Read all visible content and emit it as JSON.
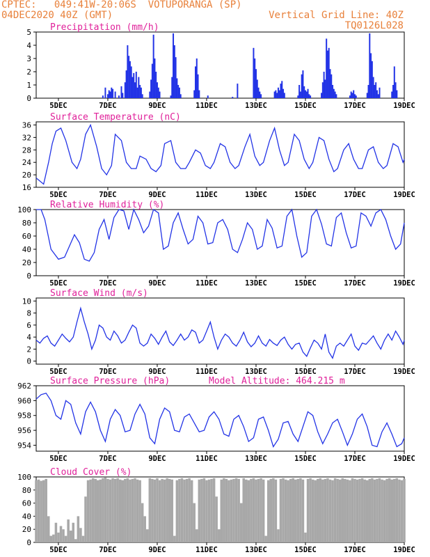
{
  "header": {
    "line1_left": "CPTEC:   049:41W-20:06S  VOTUPORANGA (SP)",
    "line2_left": "04DEC2020 40Z (GMT)",
    "line1_right": "Vertical Grid Line: 40Z",
    "line2_right": "TQ0126L028"
  },
  "colors": {
    "header": "#e8803a",
    "title": "#e0209a",
    "series": "#2233e6",
    "cloud": "#a8a8a8",
    "axis": "#000000"
  },
  "x_axis": {
    "ticks": [
      "5DEC",
      "7DEC",
      "9DEC",
      "11DEC",
      "13DEC",
      "15DEC",
      "17DEC",
      "19DEC"
    ],
    "tick_days": [
      5,
      7,
      9,
      11,
      13,
      15,
      17,
      19
    ],
    "range_days": [
      4.1,
      19.0
    ]
  },
  "chart_data": [
    {
      "type": "bar",
      "title": "Precipitation (mm/h)",
      "ylim": [
        0,
        5
      ],
      "yticks": [
        "0",
        "1",
        "2",
        "3",
        "4",
        "5"
      ],
      "x": [
        6.8,
        6.9,
        7.0,
        7.05,
        7.1,
        7.15,
        7.2,
        7.3,
        7.45,
        7.55,
        7.6,
        7.7,
        7.75,
        7.8,
        7.85,
        7.9,
        7.95,
        8.0,
        8.05,
        8.1,
        8.15,
        8.2,
        8.25,
        8.3,
        8.35,
        8.4,
        8.7,
        8.75,
        8.8,
        8.85,
        8.9,
        8.95,
        9.0,
        9.05,
        9.1,
        9.55,
        9.6,
        9.65,
        9.7,
        9.75,
        9.8,
        9.85,
        9.9,
        9.95,
        10.5,
        10.55,
        10.6,
        10.65,
        10.7,
        11.05,
        12.05,
        12.25,
        12.9,
        12.95,
        13.0,
        13.05,
        13.1,
        13.15,
        13.2,
        13.75,
        13.8,
        13.85,
        13.9,
        13.95,
        14.0,
        14.05,
        14.1,
        14.15,
        14.7,
        14.75,
        14.8,
        14.85,
        14.9,
        14.95,
        15.0,
        15.05,
        15.1,
        15.15,
        15.2,
        15.65,
        15.7,
        15.75,
        15.8,
        15.85,
        15.9,
        15.95,
        16.0,
        16.05,
        16.1,
        16.15,
        16.2,
        16.25,
        16.8,
        16.85,
        16.9,
        16.95,
        17.0,
        17.05,
        17.5,
        17.55,
        17.6,
        17.65,
        17.7,
        17.75,
        17.8,
        17.85,
        17.9,
        17.95,
        18.0,
        18.5,
        18.55,
        18.6,
        18.65,
        18.7
      ],
      "values": [
        0.2,
        0.8,
        0.3,
        0.6,
        0.5,
        0.8,
        0.7,
        0.5,
        0.2,
        0.9,
        0.4,
        1.2,
        2.1,
        4.0,
        3.2,
        2.8,
        2.4,
        1.6,
        1.9,
        1.2,
        2.0,
        0.8,
        1.6,
        1.0,
        0.8,
        0.3,
        0.5,
        1.4,
        2.6,
        4.8,
        3.0,
        2.0,
        1.2,
        0.8,
        0.5,
        0.2,
        1.6,
        4.9,
        4.0,
        3.1,
        1.5,
        1.0,
        0.8,
        0.3,
        0.6,
        2.4,
        3.0,
        1.8,
        0.6,
        0.2,
        0.1,
        1.1,
        3.8,
        3.0,
        2.2,
        1.4,
        0.8,
        0.5,
        0.3,
        0.5,
        0.6,
        0.4,
        0.8,
        0.6,
        1.1,
        1.3,
        0.7,
        0.4,
        0.2,
        1.0,
        0.5,
        1.8,
        2.1,
        0.9,
        0.6,
        0.5,
        0.7,
        0.3,
        0.2,
        0.4,
        1.2,
        2.0,
        1.4,
        4.5,
        3.6,
        3.8,
        2.2,
        1.8,
        1.0,
        0.7,
        0.5,
        0.3,
        0.2,
        0.5,
        0.4,
        0.6,
        0.3,
        0.2,
        0.4,
        1.0,
        4.9,
        3.4,
        2.8,
        1.6,
        1.0,
        1.2,
        0.6,
        0.3,
        0.8,
        0.5,
        1.0,
        2.4,
        1.2,
        0.6
      ]
    },
    {
      "type": "line",
      "title": "Surface Temperature (nC)",
      "ylim": [
        16,
        37
      ],
      "yticks": [
        "16",
        "20",
        "24",
        "28",
        "32",
        "36"
      ],
      "x": [
        4.1,
        4.4,
        4.6,
        4.75,
        4.9,
        5.1,
        5.3,
        5.55,
        5.75,
        5.9,
        6.1,
        6.3,
        6.55,
        6.75,
        6.95,
        7.15,
        7.3,
        7.55,
        7.75,
        7.95,
        8.15,
        8.3,
        8.55,
        8.75,
        8.95,
        9.15,
        9.3,
        9.55,
        9.75,
        9.95,
        10.15,
        10.3,
        10.55,
        10.75,
        10.95,
        11.15,
        11.3,
        11.55,
        11.75,
        11.95,
        12.15,
        12.3,
        12.55,
        12.75,
        12.95,
        13.15,
        13.3,
        13.55,
        13.75,
        13.95,
        14.15,
        14.3,
        14.55,
        14.75,
        14.95,
        15.15,
        15.3,
        15.55,
        15.75,
        15.95,
        16.15,
        16.3,
        16.55,
        16.75,
        16.95,
        17.15,
        17.3,
        17.55,
        17.75,
        17.95,
        18.15,
        18.3,
        18.55,
        18.75,
        18.95,
        19.0
      ],
      "values": [
        19,
        17,
        24,
        30,
        34,
        35,
        31,
        24,
        22,
        25,
        33,
        36,
        29,
        22,
        20,
        23,
        33,
        31,
        24,
        22,
        22,
        26,
        25,
        22,
        21,
        23,
        30,
        31,
        24,
        22,
        22,
        24,
        28,
        27,
        23,
        22,
        24,
        30,
        29,
        24,
        22,
        23,
        29,
        33,
        26,
        23,
        24,
        31,
        35,
        28,
        23,
        24,
        33,
        31,
        25,
        22,
        24,
        32,
        31,
        25,
        21,
        22,
        28,
        30,
        25,
        22,
        22,
        28,
        29,
        24,
        22,
        23,
        30,
        29,
        24,
        25
      ]
    },
    {
      "type": "line",
      "title": "Relative Humidity (%)",
      "ylim": [
        0,
        100
      ],
      "yticks": [
        "0",
        "20",
        "40",
        "60",
        "80",
        "100"
      ],
      "x": [
        4.1,
        4.3,
        4.45,
        4.7,
        5.0,
        5.25,
        5.45,
        5.65,
        5.85,
        6.05,
        6.25,
        6.45,
        6.65,
        6.85,
        7.05,
        7.25,
        7.45,
        7.65,
        7.85,
        8.05,
        8.25,
        8.45,
        8.65,
        8.85,
        9.05,
        9.25,
        9.45,
        9.65,
        9.85,
        10.05,
        10.25,
        10.45,
        10.65,
        10.85,
        11.05,
        11.25,
        11.45,
        11.65,
        11.85,
        12.05,
        12.25,
        12.45,
        12.65,
        12.85,
        13.05,
        13.25,
        13.45,
        13.65,
        13.85,
        14.05,
        14.25,
        14.45,
        14.65,
        14.85,
        15.05,
        15.25,
        15.45,
        15.65,
        15.85,
        16.05,
        16.25,
        16.45,
        16.65,
        16.85,
        17.05,
        17.25,
        17.45,
        17.65,
        17.85,
        18.05,
        18.25,
        18.45,
        18.65,
        18.85,
        19.0
      ],
      "values": [
        100,
        100,
        85,
        40,
        25,
        28,
        45,
        62,
        50,
        25,
        22,
        35,
        70,
        85,
        55,
        88,
        100,
        98,
        70,
        100,
        85,
        65,
        75,
        100,
        95,
        40,
        45,
        80,
        95,
        70,
        48,
        55,
        90,
        80,
        48,
        50,
        80,
        85,
        70,
        40,
        35,
        55,
        80,
        70,
        40,
        45,
        85,
        72,
        42,
        45,
        90,
        100,
        60,
        28,
        35,
        90,
        100,
        78,
        48,
        45,
        88,
        95,
        65,
        42,
        45,
        95,
        90,
        75,
        95,
        100,
        85,
        60,
        40,
        48,
        80
      ]
    },
    {
      "type": "line",
      "title": "Surface Wind (m/s)",
      "ylim": [
        -0.5,
        10.5
      ],
      "yticks": [
        "0",
        "2",
        "4",
        "6",
        "8",
        "10"
      ],
      "x": [
        4.1,
        4.25,
        4.4,
        4.55,
        4.7,
        4.85,
        5.0,
        5.15,
        5.3,
        5.45,
        5.6,
        5.75,
        5.9,
        6.05,
        6.2,
        6.35,
        6.5,
        6.65,
        6.8,
        6.95,
        7.1,
        7.25,
        7.4,
        7.55,
        7.7,
        7.85,
        8.0,
        8.15,
        8.3,
        8.45,
        8.6,
        8.75,
        8.9,
        9.05,
        9.2,
        9.35,
        9.5,
        9.65,
        9.8,
        9.95,
        10.1,
        10.25,
        10.4,
        10.55,
        10.7,
        10.85,
        11.0,
        11.15,
        11.3,
        11.45,
        11.6,
        11.75,
        11.9,
        12.05,
        12.2,
        12.35,
        12.5,
        12.65,
        12.8,
        12.95,
        13.1,
        13.25,
        13.4,
        13.55,
        13.7,
        13.85,
        14.0,
        14.15,
        14.3,
        14.45,
        14.6,
        14.75,
        14.9,
        15.05,
        15.2,
        15.35,
        15.5,
        15.65,
        15.8,
        15.95,
        16.1,
        16.25,
        16.4,
        16.55,
        16.7,
        16.85,
        17.0,
        17.15,
        17.3,
        17.45,
        17.6,
        17.75,
        17.9,
        18.05,
        18.2,
        18.35,
        18.5,
        18.65,
        18.8,
        18.95,
        19.0
      ],
      "values": [
        3.5,
        3.0,
        3.8,
        4.2,
        3.0,
        2.5,
        3.5,
        4.5,
        3.8,
        3.2,
        4.0,
        6.5,
        8.8,
        6.5,
        4.5,
        2.0,
        3.5,
        6.0,
        5.5,
        4.0,
        3.5,
        5.0,
        4.2,
        3.0,
        3.5,
        4.8,
        6.0,
        5.5,
        3.0,
        2.5,
        3.0,
        4.5,
        3.8,
        2.8,
        4.0,
        5.0,
        3.2,
        2.6,
        3.5,
        4.5,
        3.5,
        4.0,
        5.2,
        4.8,
        3.0,
        3.5,
        5.0,
        6.5,
        4.0,
        2.0,
        3.5,
        4.5,
        4.0,
        3.0,
        2.5,
        3.5,
        4.8,
        3.2,
        2.4,
        3.0,
        4.2,
        3.0,
        2.5,
        3.6,
        3.0,
        2.6,
        3.5,
        4.0,
        2.8,
        2.0,
        2.8,
        3.0,
        1.5,
        0.8,
        2.2,
        3.5,
        3.0,
        2.0,
        4.5,
        1.5,
        0.5,
        2.5,
        3.0,
        2.5,
        3.5,
        4.5,
        2.5,
        1.8,
        3.0,
        2.8,
        3.5,
        4.2,
        3.0,
        2.0,
        3.5,
        4.5,
        3.5,
        5.0,
        4.0,
        2.8,
        3.5
      ]
    },
    {
      "type": "line",
      "title": "Surface Pressure (hPa)",
      "annotation": "Model Altitude: 464.215 m",
      "ylim": [
        953.2,
        962
      ],
      "yticks": [
        "954",
        "956",
        "958",
        "960",
        "962"
      ],
      "x": [
        4.1,
        4.3,
        4.5,
        4.7,
        4.9,
        5.1,
        5.3,
        5.5,
        5.7,
        5.9,
        6.1,
        6.3,
        6.5,
        6.7,
        6.9,
        7.1,
        7.3,
        7.5,
        7.7,
        7.9,
        8.1,
        8.3,
        8.5,
        8.7,
        8.9,
        9.1,
        9.3,
        9.5,
        9.7,
        9.9,
        10.1,
        10.3,
        10.5,
        10.7,
        10.9,
        11.1,
        11.3,
        11.5,
        11.7,
        11.9,
        12.1,
        12.3,
        12.5,
        12.7,
        12.9,
        13.1,
        13.3,
        13.5,
        13.7,
        13.9,
        14.1,
        14.3,
        14.5,
        14.7,
        14.9,
        15.1,
        15.3,
        15.5,
        15.7,
        15.9,
        16.1,
        16.3,
        16.5,
        16.7,
        16.9,
        17.1,
        17.3,
        17.5,
        17.7,
        17.9,
        18.1,
        18.3,
        18.5,
        18.7,
        18.9,
        19.0
      ],
      "values": [
        960.2,
        960.8,
        961.0,
        960.0,
        958.0,
        957.5,
        960.0,
        959.5,
        957.0,
        955.5,
        958.5,
        959.8,
        958.5,
        956.0,
        954.5,
        957.5,
        958.8,
        958.0,
        955.8,
        956.0,
        958.2,
        959.5,
        958.2,
        955.0,
        954.2,
        957.5,
        959.0,
        958.5,
        956.0,
        955.8,
        957.8,
        958.2,
        957.0,
        955.8,
        956.0,
        957.8,
        958.5,
        957.5,
        955.5,
        955.2,
        957.5,
        958.0,
        956.5,
        954.5,
        955.0,
        957.5,
        957.8,
        956.0,
        953.8,
        954.8,
        957.0,
        957.2,
        955.5,
        954.5,
        956.5,
        958.5,
        958.0,
        955.8,
        954.2,
        955.5,
        957.0,
        957.5,
        955.8,
        954.0,
        955.5,
        957.5,
        958.2,
        956.5,
        954.0,
        953.8,
        955.8,
        957.0,
        955.5,
        953.8,
        954.2,
        955.0
      ]
    },
    {
      "type": "bar",
      "title": "Cloud Cover (%)",
      "ylim": [
        0,
        100
      ],
      "yticks": [
        "0",
        "20",
        "40",
        "60",
        "80",
        "100"
      ],
      "x": [
        4.1,
        4.2,
        4.3,
        4.4,
        4.5,
        4.6,
        4.7,
        4.8,
        4.9,
        5.0,
        5.1,
        5.2,
        5.3,
        5.4,
        5.5,
        5.6,
        5.7,
        5.8,
        5.9,
        6.0,
        6.1,
        6.2,
        6.3,
        6.4,
        6.5,
        6.6,
        6.7,
        6.8,
        6.9,
        7.0,
        7.1,
        7.2,
        7.3,
        7.4,
        7.5,
        7.6,
        7.7,
        7.8,
        7.9,
        8.0,
        8.1,
        8.2,
        8.3,
        8.4,
        8.5,
        8.6,
        8.7,
        8.8,
        8.9,
        9.0,
        9.1,
        9.2,
        9.3,
        9.4,
        9.5,
        9.6,
        9.7,
        9.8,
        9.9,
        10.0,
        10.1,
        10.2,
        10.3,
        10.4,
        10.5,
        10.6,
        10.7,
        10.8,
        10.9,
        11.0,
        11.1,
        11.2,
        11.3,
        11.4,
        11.5,
        11.6,
        11.7,
        11.8,
        11.9,
        12.0,
        12.1,
        12.2,
        12.3,
        12.4,
        12.5,
        12.6,
        12.7,
        12.8,
        12.9,
        13.0,
        13.1,
        13.2,
        13.3,
        13.4,
        13.5,
        13.6,
        13.7,
        13.8,
        13.9,
        14.0,
        14.1,
        14.2,
        14.3,
        14.4,
        14.5,
        14.6,
        14.7,
        14.8,
        14.9,
        15.0,
        15.1,
        15.2,
        15.3,
        15.4,
        15.5,
        15.6,
        15.7,
        15.8,
        15.9,
        16.0,
        16.1,
        16.2,
        16.3,
        16.4,
        16.5,
        16.6,
        16.7,
        16.8,
        16.9,
        17.0,
        17.1,
        17.2,
        17.3,
        17.4,
        17.5,
        17.6,
        17.7,
        17.8,
        17.9,
        18.0,
        18.1,
        18.2,
        18.3,
        18.4,
        18.5,
        18.6,
        18.7,
        18.8,
        18.9,
        19.0
      ],
      "values": [
        95,
        96,
        94,
        95,
        97,
        40,
        10,
        12,
        30,
        15,
        25,
        20,
        10,
        35,
        18,
        30,
        5,
        40,
        22,
        10,
        70,
        95,
        96,
        98,
        97,
        95,
        96,
        98,
        99,
        97,
        96,
        98,
        97,
        98,
        96,
        95,
        97,
        98,
        96,
        97,
        98,
        96,
        95,
        60,
        40,
        20,
        98,
        97,
        96,
        98,
        95,
        97,
        96,
        98,
        97,
        96,
        10,
        95,
        97,
        98,
        96,
        97,
        98,
        95,
        60,
        20,
        96,
        97,
        98,
        95,
        96,
        97,
        98,
        70,
        20,
        96,
        98,
        97,
        95,
        96,
        97,
        98,
        97,
        60,
        98,
        96,
        95,
        97,
        98,
        96,
        97,
        98,
        96,
        10,
        95,
        97,
        98,
        96,
        20,
        97,
        98,
        96,
        95,
        97,
        98,
        96,
        97,
        98,
        96,
        15,
        97,
        98,
        96,
        95,
        97,
        98,
        96,
        97,
        98,
        96,
        95,
        98,
        97,
        96,
        98,
        97,
        96,
        95,
        98,
        97,
        96,
        97,
        98,
        96,
        95,
        97,
        98,
        96,
        97,
        98,
        96,
        95,
        97,
        98,
        96,
        97,
        98,
        96,
        95,
        97
      ]
    }
  ]
}
